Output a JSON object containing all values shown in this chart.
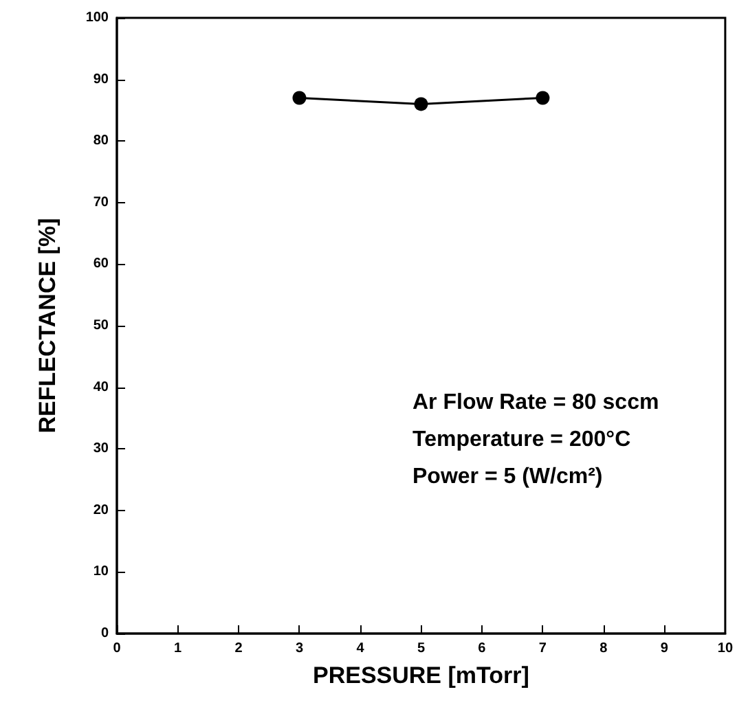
{
  "chart_data": {
    "type": "line",
    "xlabel": "PRESSURE [mTorr]",
    "ylabel": "REFLECTANCE [%]",
    "x": [
      3,
      5,
      7
    ],
    "series": [
      {
        "color": "#000000",
        "values": [
          87,
          86,
          87
        ]
      }
    ],
    "xlim": [
      0,
      10
    ],
    "xticks": [
      0,
      1,
      2,
      3,
      4,
      5,
      6,
      7,
      8,
      9,
      10
    ],
    "ylim": [
      0,
      100
    ],
    "yticks": [
      0,
      10,
      20,
      30,
      40,
      50,
      60,
      70,
      80,
      90,
      100
    ],
    "marker": "circle",
    "line_style": "solid",
    "grid": false,
    "annotations": [
      "Ar Flow Rate = 80 sccm",
      "Temperature = 200°C",
      "Power = 5 (W/cm²)"
    ]
  }
}
